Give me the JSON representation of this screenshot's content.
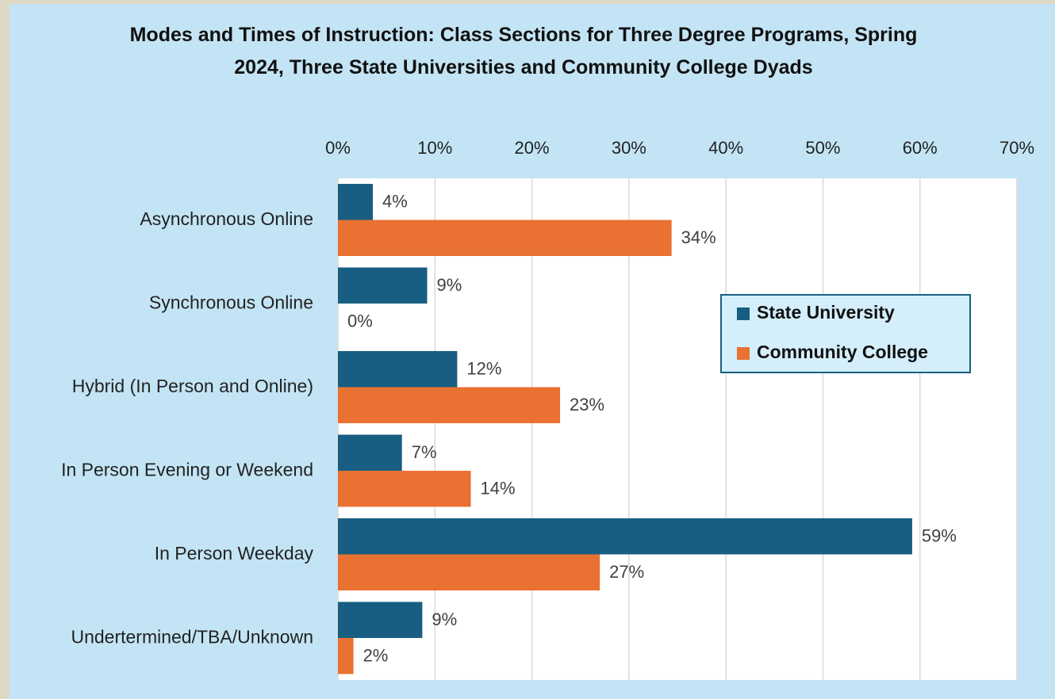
{
  "chart_data": {
    "type": "hbar",
    "title": "Modes and Times of Instruction: Class Sections for Three Degree Programs, Spring 2024, Three State Universities and Community College Dyads",
    "categories": [
      "Asynchronous Online",
      "Synchronous Online",
      "Hybrid (In Person and Online)",
      "In Person Evening or Weekend",
      "In Person Weekday",
      "Undertermined/TBA/Unknown"
    ],
    "series": [
      {
        "name": "State University",
        "color": "#175e82",
        "values": [
          3.6,
          9.2,
          12.3,
          6.6,
          59.2,
          8.7
        ],
        "value_labels": [
          "4%",
          "9%",
          "12%",
          "7%",
          "59%",
          "9%"
        ]
      },
      {
        "name": "Community College",
        "color": "#e97132",
        "values": [
          34.4,
          0,
          22.9,
          13.7,
          27.0,
          1.6
        ],
        "value_labels": [
          "34%",
          "0%",
          "23%",
          "14%",
          "27%",
          "2%"
        ]
      }
    ],
    "xlim": [
      0,
      70
    ],
    "xticks": [
      {
        "value": 0,
        "label": "0%"
      },
      {
        "value": 10,
        "label": "10%"
      },
      {
        "value": 20,
        "label": "20%"
      },
      {
        "value": 30,
        "label": "30%"
      },
      {
        "value": 40,
        "label": "40%"
      },
      {
        "value": 50,
        "label": "50%"
      },
      {
        "value": 60,
        "label": "60%"
      },
      {
        "value": 70,
        "label": "70%"
      }
    ],
    "grid": true,
    "legend": "right"
  }
}
